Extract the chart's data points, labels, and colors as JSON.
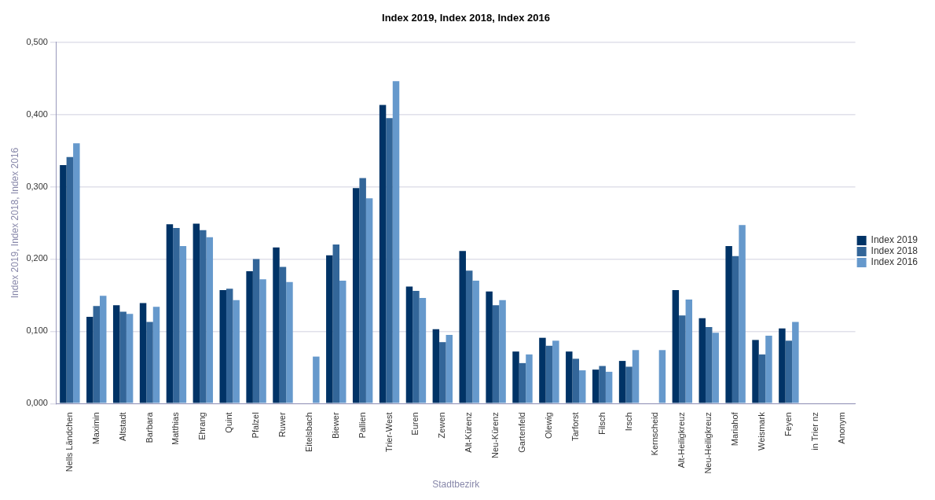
{
  "chart_data": {
    "type": "bar",
    "title": "Index 2019, Index 2018, Index 2016",
    "xlabel": "Stadtbezirk",
    "ylabel": "Index 2019, Index 2018, Index 2016",
    "categories": [
      "Nells Ländchen",
      "Maximin",
      "Altstadt",
      "Barbara",
      "Matthias",
      "Ehrang",
      "Quint",
      "Pfalzel",
      "Ruwer",
      "Eitelsbach",
      "Biewer",
      "Pallien",
      "Trier-West",
      "Euren",
      "Zewen",
      "Alt-Kürenz",
      "Neu-Kürenz",
      "Gartenfeld",
      "Olewig",
      "Tarforst",
      "Filsch",
      "Irsch",
      "Kernscheid",
      "Alt-Heiligkreuz",
      "Neu-Heiligkreuz",
      "Mariahof",
      "Weismark",
      "Feyen",
      "in Trier nz",
      "Anonym"
    ],
    "series": [
      {
        "name": "Index 2019",
        "color": "#003366",
        "values": [
          0.33,
          0.12,
          0.136,
          0.139,
          0.248,
          0.249,
          0.157,
          0.183,
          0.216,
          null,
          0.205,
          0.298,
          0.413,
          0.162,
          0.103,
          0.211,
          0.155,
          0.072,
          0.091,
          0.072,
          0.047,
          0.059,
          null,
          0.157,
          0.118,
          0.218,
          0.088,
          0.104,
          null,
          null
        ]
      },
      {
        "name": "Index 2018",
        "color": "#336699",
        "values": [
          0.341,
          0.135,
          0.127,
          0.113,
          0.243,
          0.24,
          0.159,
          0.2,
          0.189,
          null,
          0.22,
          0.312,
          0.395,
          0.156,
          0.085,
          0.184,
          0.136,
          0.056,
          0.08,
          0.062,
          0.052,
          0.051,
          null,
          0.122,
          0.106,
          0.204,
          0.068,
          0.087,
          null,
          null
        ]
      },
      {
        "name": "Index 2016",
        "color": "#6699cc",
        "values": [
          0.36,
          0.149,
          0.124,
          0.134,
          0.218,
          0.23,
          0.143,
          0.172,
          0.168,
          0.065,
          0.17,
          0.284,
          0.446,
          0.146,
          0.095,
          0.17,
          0.143,
          0.068,
          0.087,
          0.046,
          0.044,
          0.074,
          0.074,
          0.144,
          0.098,
          0.247,
          0.094,
          0.113,
          null,
          null
        ]
      }
    ],
    "ylim": [
      0,
      0.5
    ],
    "yticks": [
      {
        "value": 0,
        "label": "0,000"
      },
      {
        "value": 0.1,
        "label": "0,100"
      },
      {
        "value": 0.2,
        "label": "0,200"
      },
      {
        "value": 0.3,
        "label": "0,300"
      },
      {
        "value": 0.4,
        "label": "0,400"
      },
      {
        "value": 0.5,
        "label": "0,500"
      }
    ],
    "grid": "y",
    "legend": "right"
  }
}
